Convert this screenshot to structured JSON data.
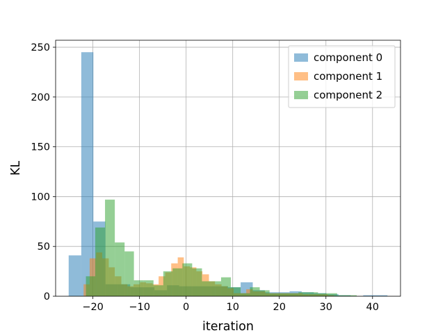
{
  "chart_data": {
    "type": "bar",
    "subtype": "histogram",
    "title": "",
    "xlabel": "iteration",
    "ylabel": "KL",
    "xlim": [
      -28,
      46
    ],
    "ylim": [
      0,
      257
    ],
    "xticks": [
      -20,
      -10,
      0,
      10,
      20,
      30,
      40
    ],
    "yticks": [
      0,
      50,
      100,
      150,
      200,
      250
    ],
    "grid": true,
    "legend_placement": "top-right",
    "series": [
      {
        "name": "component 0",
        "color": "#1f77b4",
        "alpha": 0.5,
        "bins": [
          [
            -25.2,
            -22.5,
            41
          ],
          [
            -22.5,
            -19.9,
            245
          ],
          [
            -19.9,
            -17.3,
            75
          ],
          [
            -17.3,
            -14.7,
            12
          ],
          [
            -14.7,
            -12.0,
            12
          ],
          [
            -12.0,
            -9.4,
            9
          ],
          [
            -9.4,
            -6.8,
            9
          ],
          [
            -6.8,
            -4.1,
            6
          ],
          [
            -4.1,
            -1.5,
            11
          ],
          [
            -1.5,
            1.1,
            10
          ],
          [
            1.1,
            3.8,
            10
          ],
          [
            3.8,
            6.4,
            10
          ],
          [
            6.4,
            9.0,
            10
          ],
          [
            9.0,
            11.7,
            9
          ],
          [
            11.7,
            14.3,
            14
          ],
          [
            14.3,
            16.9,
            6
          ],
          [
            16.9,
            19.5,
            4
          ],
          [
            19.5,
            22.2,
            4
          ],
          [
            22.2,
            24.8,
            5
          ],
          [
            24.8,
            27.4,
            4
          ],
          [
            27.4,
            30.1,
            3
          ],
          [
            30.1,
            32.7,
            2
          ],
          [
            32.7,
            35.3,
            1
          ],
          [
            35.3,
            38.0,
            0
          ],
          [
            38.0,
            40.6,
            1
          ],
          [
            40.6,
            43.2,
            1
          ]
        ]
      },
      {
        "name": "component 1",
        "color": "#ff7f0e",
        "alpha": 0.5,
        "bins": [
          [
            -22.0,
            -20.7,
            12
          ],
          [
            -20.7,
            -19.3,
            38
          ],
          [
            -19.3,
            -18.0,
            44
          ],
          [
            -18.0,
            -16.6,
            38
          ],
          [
            -16.6,
            -15.3,
            29
          ],
          [
            -15.3,
            -13.9,
            20
          ],
          [
            -13.9,
            -12.6,
            12
          ],
          [
            -12.6,
            -11.3,
            10
          ],
          [
            -11.3,
            -9.9,
            12
          ],
          [
            -9.9,
            -8.6,
            14
          ],
          [
            -8.6,
            -7.2,
            13
          ],
          [
            -7.2,
            -5.9,
            12
          ],
          [
            -5.9,
            -4.5,
            20
          ],
          [
            -4.5,
            -3.2,
            24
          ],
          [
            -3.2,
            -1.8,
            33
          ],
          [
            -1.8,
            -0.5,
            39
          ],
          [
            -0.5,
            0.8,
            30
          ],
          [
            0.8,
            2.2,
            29
          ],
          [
            2.2,
            3.5,
            25
          ],
          [
            3.5,
            4.9,
            22
          ],
          [
            4.9,
            6.2,
            15
          ],
          [
            6.2,
            7.6,
            12
          ],
          [
            7.6,
            8.9,
            10
          ],
          [
            8.9,
            10.2,
            8
          ],
          [
            10.2,
            11.6,
            3
          ],
          [
            11.6,
            12.9,
            3
          ],
          [
            12.9,
            14.3,
            7
          ],
          [
            14.3,
            15.6,
            5
          ],
          [
            15.6,
            17.0,
            5
          ],
          [
            17.0,
            18.3,
            3
          ],
          [
            18.3,
            19.6,
            3
          ],
          [
            19.6,
            21.0,
            3
          ],
          [
            21.0,
            22.3,
            3
          ],
          [
            22.3,
            23.7,
            3
          ],
          [
            23.7,
            25.0,
            3
          ],
          [
            25.0,
            26.4,
            2
          ],
          [
            26.4,
            27.7,
            2
          ],
          [
            27.7,
            29.1,
            2
          ],
          [
            29.1,
            30.4,
            2
          ],
          [
            30.4,
            31.7,
            1
          ]
        ]
      },
      {
        "name": "component 2",
        "color": "#2ca02c",
        "alpha": 0.5,
        "bins": [
          [
            -21.5,
            -19.5,
            20
          ],
          [
            -19.5,
            -17.4,
            69
          ],
          [
            -17.4,
            -15.3,
            97
          ],
          [
            -15.3,
            -13.2,
            54
          ],
          [
            -13.2,
            -11.2,
            45
          ],
          [
            -11.2,
            -9.1,
            16
          ],
          [
            -9.1,
            -7.0,
            16
          ],
          [
            -7.0,
            -4.9,
            11
          ],
          [
            -4.9,
            -2.9,
            25
          ],
          [
            -2.9,
            -0.8,
            28
          ],
          [
            -0.8,
            1.3,
            33
          ],
          [
            1.3,
            3.4,
            28
          ],
          [
            3.4,
            5.4,
            15
          ],
          [
            5.4,
            7.5,
            15
          ],
          [
            7.5,
            9.6,
            19
          ],
          [
            9.6,
            11.7,
            9
          ],
          [
            11.7,
            13.7,
            3
          ],
          [
            13.7,
            15.8,
            9
          ],
          [
            15.8,
            17.9,
            6
          ],
          [
            17.9,
            20.0,
            3
          ],
          [
            20.0,
            22.0,
            3
          ],
          [
            22.0,
            24.1,
            3
          ],
          [
            24.1,
            26.2,
            4
          ],
          [
            26.2,
            28.3,
            4
          ],
          [
            28.3,
            30.3,
            3
          ],
          [
            30.3,
            32.4,
            3
          ],
          [
            32.4,
            34.5,
            1
          ],
          [
            34.5,
            36.6,
            1
          ],
          [
            36.6,
            38.6,
            0
          ]
        ]
      }
    ]
  }
}
